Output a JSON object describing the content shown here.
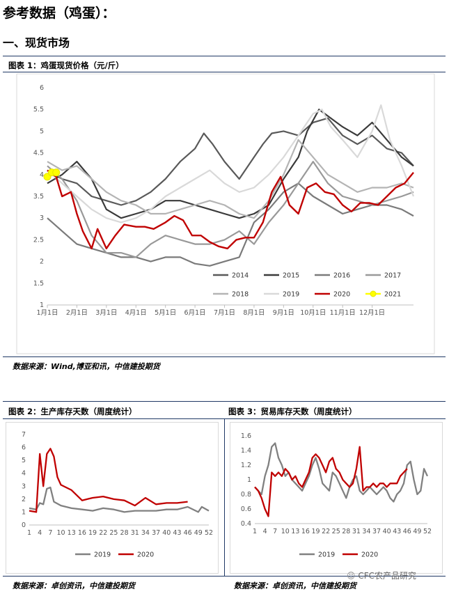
{
  "page": {
    "heading": "参考数据（鸡蛋）：",
    "section": "一、现货市场"
  },
  "chart1": {
    "label": "图表 1：鸡蛋现货价格（元/斤）",
    "source": "数据来源：Wind,博亚和讯，中信建投期货"
  },
  "chart2": {
    "label": "图表 2：生产库存天数（周度统计）",
    "source": "数据来源：卓创资讯，中信建投期货"
  },
  "chart3": {
    "label": "图表 3：贸易库存天数（周度统计）",
    "source": "数据来源：卓创资讯，中信建投期货"
  },
  "watermark": "CFC农产品研究",
  "chart_data": [
    {
      "type": "line",
      "ylim": [
        1,
        6
      ],
      "yticks": [
        "1",
        "1.5",
        "2",
        "2.5",
        "3",
        "3.5",
        "4",
        "4.5",
        "5",
        "5.5",
        "6"
      ],
      "categories": [
        "1月1日",
        "2月1日",
        "3月1日",
        "4月1日",
        "5月1日",
        "6月1日",
        "7月1日",
        "8月1日",
        "9月1日",
        "10月1日",
        "11月1日",
        "12月1日"
      ],
      "legend_position": "bottom-right",
      "series": [
        {
          "name": "2014",
          "color": "#595959",
          "x": [
            0,
            0.5,
            1,
            1.5,
            2,
            2.5,
            3,
            3.5,
            4,
            4.5,
            5,
            5.3,
            5.6,
            6,
            6.5,
            7,
            7.3,
            7.6,
            8,
            8.5,
            9,
            9.5,
            10,
            10.5,
            11,
            11.5,
            12,
            12.4
          ],
          "y": [
            4.1,
            3.9,
            3.8,
            3.5,
            3.4,
            3.3,
            3.4,
            3.6,
            3.9,
            4.3,
            4.6,
            4.95,
            4.7,
            4.3,
            3.9,
            4.4,
            4.7,
            4.95,
            5.0,
            4.9,
            5.2,
            5.3,
            4.9,
            4.7,
            4.9,
            4.6,
            4.5,
            4.2
          ]
        },
        {
          "name": "2015",
          "color": "#3a3a3a",
          "x": [
            0,
            0.5,
            1,
            1.5,
            2,
            2.5,
            3,
            3.5,
            4,
            4.5,
            5,
            5.5,
            6,
            6.5,
            7,
            7.5,
            8,
            8.5,
            8.8,
            9.2,
            9.6,
            10,
            10.5,
            11,
            11.5,
            12,
            12.4
          ],
          "y": [
            3.8,
            4.0,
            4.3,
            3.9,
            3.2,
            3.0,
            3.1,
            3.2,
            3.4,
            3.4,
            3.3,
            3.2,
            3.1,
            3.0,
            3.1,
            3.3,
            3.9,
            4.4,
            5.0,
            5.5,
            5.3,
            5.1,
            4.9,
            5.2,
            4.8,
            4.4,
            4.2
          ]
        },
        {
          "name": "2016",
          "color": "#7a7a7a",
          "x": [
            0,
            0.5,
            1,
            1.5,
            2,
            2.5,
            3,
            3.5,
            4,
            4.5,
            5,
            5.5,
            6,
            6.5,
            7,
            7.5,
            8,
            8.5,
            9,
            9.5,
            10,
            10.5,
            11,
            11.5,
            12,
            12.4
          ],
          "y": [
            3.0,
            2.7,
            2.4,
            2.3,
            2.2,
            2.1,
            2.1,
            2.0,
            2.1,
            2.1,
            1.95,
            1.9,
            2.0,
            2.1,
            2.9,
            3.2,
            3.6,
            3.8,
            3.5,
            3.3,
            3.1,
            3.2,
            3.3,
            3.3,
            3.2,
            3.05
          ]
        },
        {
          "name": "2017",
          "color": "#999999",
          "x": [
            0,
            0.5,
            1,
            1.5,
            2,
            2.5,
            3,
            3.5,
            4,
            4.5,
            5,
            5.5,
            6,
            6.5,
            7,
            7.5,
            8,
            8.5,
            9,
            9.5,
            10,
            10.5,
            11,
            11.5,
            12,
            12.4
          ],
          "y": [
            4.2,
            3.9,
            3.4,
            2.6,
            2.2,
            2.2,
            2.1,
            2.4,
            2.6,
            2.5,
            2.4,
            2.4,
            2.5,
            2.7,
            2.4,
            2.9,
            3.3,
            3.8,
            4.3,
            3.8,
            3.5,
            3.4,
            3.3,
            3.4,
            3.5,
            3.6
          ]
        },
        {
          "name": "2018",
          "color": "#b4b4b4",
          "x": [
            0,
            0.5,
            1,
            1.5,
            2,
            2.5,
            3,
            3.5,
            4,
            4.5,
            5,
            5.5,
            6,
            6.5,
            7,
            7.5,
            8,
            8.5,
            9,
            9.5,
            10,
            10.5,
            11,
            11.5,
            12,
            12.4
          ],
          "y": [
            4.3,
            4.1,
            4.2,
            3.9,
            3.6,
            3.4,
            3.3,
            3.1,
            3.1,
            3.2,
            3.3,
            3.4,
            3.3,
            3.1,
            3.0,
            3.4,
            4.0,
            4.8,
            4.4,
            4.0,
            3.8,
            3.6,
            3.7,
            3.7,
            3.8,
            3.7
          ]
        },
        {
          "name": "2019",
          "color": "#d9d9d9",
          "x": [
            0,
            0.5,
            1,
            1.5,
            2,
            2.5,
            3,
            3.5,
            4,
            4.5,
            5,
            5.5,
            6,
            6.5,
            7,
            7.5,
            8,
            8.5,
            9,
            9.3,
            9.6,
            10,
            10.5,
            11,
            11.3,
            11.6,
            12,
            12.4
          ],
          "y": [
            4.1,
            3.8,
            3.5,
            3.2,
            3.0,
            2.9,
            3.0,
            3.2,
            3.5,
            3.7,
            3.9,
            4.1,
            3.8,
            3.6,
            3.7,
            4.0,
            4.4,
            4.9,
            5.4,
            5.5,
            5.1,
            4.8,
            4.4,
            5.0,
            5.6,
            4.8,
            4.2,
            3.5
          ]
        },
        {
          "name": "2020",
          "color": "#c00000",
          "x": [
            0,
            0.3,
            0.5,
            0.8,
            1,
            1.2,
            1.5,
            1.7,
            2,
            2.3,
            2.6,
            3,
            3.3,
            3.6,
            4,
            4.3,
            4.6,
            4.9,
            5.2,
            5.5,
            5.8,
            6.1,
            6.4,
            6.7,
            7,
            7.3,
            7.6,
            7.9,
            8.2,
            8.5,
            8.8,
            9.1,
            9.4,
            9.7,
            10,
            10.3,
            10.6,
            10.9,
            11.2,
            11.5,
            11.8,
            12.1,
            12.4
          ],
          "y": [
            4.1,
            3.95,
            3.5,
            3.6,
            3.1,
            2.7,
            2.3,
            2.75,
            2.3,
            2.6,
            2.85,
            2.8,
            2.8,
            2.75,
            2.9,
            3.05,
            2.95,
            2.6,
            2.6,
            2.45,
            2.35,
            2.3,
            2.5,
            2.55,
            2.55,
            2.9,
            3.6,
            3.95,
            3.3,
            3.1,
            3.7,
            3.8,
            3.6,
            3.55,
            3.3,
            3.15,
            3.35,
            3.35,
            3.3,
            3.5,
            3.7,
            3.8,
            4.05
          ]
        },
        {
          "name": "2021",
          "color": "#ffff00",
          "x": [
            0,
            0.15,
            0.3
          ],
          "y": [
            3.95,
            4.05,
            4.05
          ]
        }
      ]
    },
    {
      "type": "line",
      "ylim": [
        0,
        7
      ],
      "yticks": [
        "0",
        "1",
        "2",
        "3",
        "4",
        "5",
        "6",
        "7"
      ],
      "categories": [
        "1",
        "4",
        "7",
        "10",
        "13",
        "16",
        "19",
        "22",
        "25",
        "28",
        "31",
        "34",
        "37",
        "40",
        "43",
        "46",
        "49",
        "52"
      ],
      "legend_position": "bottom",
      "series": [
        {
          "name": "2019",
          "color": "#808080",
          "x": [
            1,
            3,
            4,
            5,
            6,
            7,
            8,
            10,
            13,
            16,
            19,
            22,
            25,
            28,
            31,
            34,
            37,
            40,
            43,
            46,
            49,
            50,
            52
          ],
          "y": [
            1.3,
            1.2,
            1.7,
            1.6,
            2.8,
            2.9,
            1.8,
            1.5,
            1.3,
            1.2,
            1.1,
            1.3,
            1.2,
            1.0,
            1.1,
            1.1,
            1.1,
            1.2,
            1.2,
            1.4,
            1.0,
            1.4,
            1.1
          ]
        },
        {
          "name": "2020",
          "color": "#c00000",
          "x": [
            1,
            3,
            4,
            5,
            6,
            7,
            8,
            9,
            10,
            13,
            16,
            19,
            22,
            25,
            28,
            31,
            34,
            37,
            40,
            43,
            46
          ],
          "y": [
            1.1,
            1.0,
            5.5,
            3.0,
            5.5,
            5.9,
            5.3,
            3.7,
            3.1,
            2.7,
            1.9,
            2.1,
            2.2,
            2.0,
            1.9,
            1.5,
            2.1,
            1.6,
            1.7,
            1.7,
            1.8
          ]
        }
      ]
    },
    {
      "type": "line",
      "ylim": [
        0.4,
        1.6
      ],
      "yticks": [
        "0.4",
        "0.6",
        "0.8",
        "1",
        "1.2",
        "1.4",
        "1.6"
      ],
      "categories": [
        "1",
        "4",
        "7",
        "10",
        "13",
        "16",
        "19",
        "22",
        "25",
        "28",
        "31",
        "34",
        "37",
        "40",
        "43",
        "46",
        "49",
        "52"
      ],
      "legend_position": "bottom",
      "series": [
        {
          "name": "2019",
          "color": "#808080",
          "x": [
            1,
            2,
            3,
            4,
            5,
            6,
            7,
            8,
            9,
            10,
            11,
            12,
            13,
            14,
            15,
            16,
            17,
            18,
            19,
            20,
            21,
            22,
            23,
            24,
            25,
            26,
            27,
            28,
            29,
            30,
            31,
            32,
            33,
            34,
            35,
            36,
            37,
            38,
            39,
            40,
            41,
            42,
            43,
            44,
            45,
            46,
            47,
            48,
            49,
            50,
            51,
            52
          ],
          "y": [
            0.9,
            0.85,
            0.8,
            1.05,
            1.2,
            1.45,
            1.5,
            1.3,
            1.2,
            1.05,
            1.1,
            1.0,
            0.95,
            0.9,
            0.85,
            0.95,
            1.05,
            1.2,
            1.3,
            1.15,
            0.95,
            0.9,
            0.85,
            1.1,
            1.05,
            0.95,
            0.85,
            0.75,
            0.9,
            1.0,
            1.05,
            0.85,
            0.8,
            0.85,
            0.9,
            0.85,
            0.8,
            0.85,
            0.9,
            0.85,
            0.75,
            0.7,
            0.8,
            0.85,
            0.95,
            1.2,
            1.25,
            1.0,
            0.8,
            0.85,
            1.15,
            1.05
          ]
        },
        {
          "name": "2020",
          "color": "#c00000",
          "x": [
            1,
            2,
            3,
            4,
            5,
            6,
            7,
            8,
            9,
            10,
            11,
            12,
            13,
            14,
            15,
            16,
            17,
            18,
            19,
            20,
            21,
            22,
            23,
            24,
            25,
            26,
            27,
            28,
            29,
            30,
            31,
            32,
            33,
            34,
            35,
            36,
            37,
            38,
            39,
            40,
            41,
            42,
            43,
            44,
            45,
            46
          ],
          "y": [
            0.9,
            0.85,
            0.75,
            0.6,
            0.5,
            1.1,
            1.05,
            1.1,
            1.05,
            1.15,
            1.1,
            1.0,
            1.05,
            0.95,
            0.9,
            1.0,
            1.1,
            1.3,
            1.35,
            1.3,
            1.2,
            1.1,
            1.25,
            1.3,
            1.15,
            1.1,
            1.0,
            0.95,
            0.9,
            0.95,
            1.15,
            1.45,
            0.85,
            0.9,
            0.9,
            0.95,
            0.9,
            0.95,
            0.95,
            0.9,
            0.95,
            0.95,
            0.95,
            1.05,
            1.1,
            1.15
          ]
        }
      ]
    }
  ]
}
